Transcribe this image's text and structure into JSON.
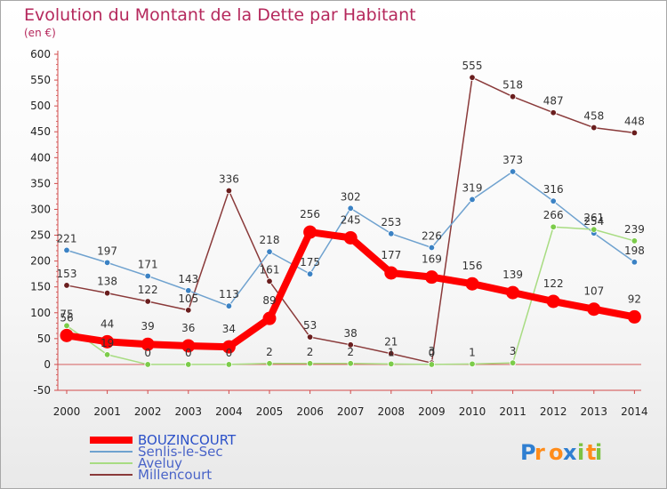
{
  "title": "Evolution du Montant de la Dette par Habitant",
  "unit": "(en €)",
  "logo": "Proxiti",
  "chart_data": {
    "type": "line",
    "x": [
      "2000",
      "2001",
      "2002",
      "2003",
      "2004",
      "2005",
      "2006",
      "2007",
      "2008",
      "2009",
      "2010",
      "2011",
      "2012",
      "2013",
      "2014"
    ],
    "ylim": [
      -50,
      600
    ],
    "yticks": [
      -50,
      0,
      50,
      100,
      150,
      200,
      250,
      300,
      350,
      400,
      450,
      500,
      550,
      600
    ],
    "grid": false,
    "legend_position": "bottom-left",
    "series": [
      {
        "name": "BOUZINCOURT",
        "color": "#ff0000",
        "marker": "#ff0000",
        "width": 8,
        "values": [
          56,
          44,
          39,
          36,
          34,
          89,
          256,
          245,
          177,
          169,
          156,
          139,
          122,
          107,
          92
        ]
      },
      {
        "name": "Senlis-le-Sec",
        "color": "#6fa2cf",
        "marker": "#3b82c4",
        "width": 1.5,
        "values": [
          221,
          197,
          171,
          143,
          113,
          218,
          175,
          302,
          253,
          226,
          319,
          373,
          316,
          254,
          198
        ]
      },
      {
        "name": "Aveluy",
        "color": "#a8dc82",
        "marker": "#7ccc4a",
        "width": 1.5,
        "values": [
          75,
          19,
          0,
          0,
          0,
          2,
          2,
          2,
          1,
          0,
          1,
          3,
          266,
          261,
          239
        ]
      },
      {
        "name": "Millencourt",
        "color": "#8a3a3a",
        "marker": "#6a1e1e",
        "width": 1.5,
        "values": [
          153,
          138,
          122,
          105,
          336,
          161,
          53,
          38,
          21,
          3,
          555,
          518,
          487,
          458,
          448
        ]
      }
    ]
  }
}
